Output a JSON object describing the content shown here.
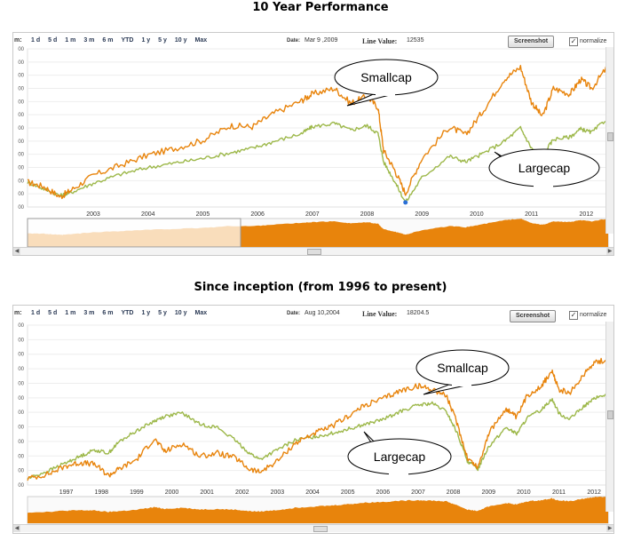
{
  "titles": [
    "10 Year Performance",
    "Since inception (from 1996 to present)"
  ],
  "colors": {
    "smallcap": "#e8840c",
    "largecap": "#9db84a",
    "nav_fill": "#e8840c",
    "nav_faded": "#f5cfa8"
  },
  "toolbar": {
    "cut_label": "m:",
    "ranges": [
      "1 d",
      "5 d",
      "1 m",
      "3 m",
      "6 m",
      "YTD",
      "1 y",
      "5 y",
      "10 y",
      "Max"
    ],
    "date_label": "Date:",
    "line_value_label": "Line Value:",
    "screenshot_label": "Screenshot",
    "normalize_label": "normalize",
    "normalize_checked": "✓"
  },
  "charts": [
    {
      "date_value": "Mar 9 ,2009",
      "line_value": "12535",
      "callouts": {
        "smallcap": "Smallcap",
        "largecap": "Largecap"
      }
    },
    {
      "date_value": "Aug 10,2004",
      "line_value": "18204.5",
      "callouts": {
        "smallcap": "Smallcap",
        "largecap": "Largecap"
      }
    }
  ],
  "chart_data": [
    {
      "type": "line",
      "title": "10 Year Performance",
      "x_ticks": [
        "2003",
        "2004",
        "2005",
        "2006",
        "2007",
        "2008",
        "2009",
        "2010",
        "2011",
        "2012"
      ],
      "xlim": [
        2002.3,
        2012.9
      ],
      "ylim": [
        0,
        14
      ],
      "ylabel_note": "y tick labels cropped",
      "series": [
        {
          "name": "Smallcap",
          "x": [
            2002.3,
            2002.6,
            2002.9,
            2003.1,
            2003.5,
            2004.0,
            2004.5,
            2005.0,
            2005.5,
            2006.0,
            2006.4,
            2006.8,
            2007.3,
            2007.5,
            2007.9,
            2008.2,
            2008.5,
            2008.7,
            2008.8,
            2009.0,
            2009.2,
            2009.5,
            2010.0,
            2010.3,
            2010.6,
            2011.0,
            2011.3,
            2011.5,
            2011.7,
            2011.9,
            2012.2,
            2012.4,
            2012.6,
            2012.9
          ],
          "values": [
            2.2,
            1.8,
            0.9,
            1.5,
            2.8,
            3.7,
            4.6,
            5.2,
            5.9,
            7.2,
            7.1,
            8.3,
            9.4,
            10.0,
            10.5,
            9.2,
            9.8,
            8.8,
            5.0,
            3.3,
            1.2,
            4.3,
            7.1,
            6.4,
            8.4,
            11.3,
            12.4,
            9.3,
            8.0,
            10.5,
            10.0,
            11.3,
            10.5,
            12.5
          ]
        },
        {
          "name": "Largecap",
          "x": [
            2002.3,
            2002.6,
            2002.9,
            2003.1,
            2003.5,
            2004.0,
            2004.5,
            2005.0,
            2005.5,
            2006.0,
            2006.4,
            2006.8,
            2007.3,
            2007.5,
            2007.9,
            2008.2,
            2008.5,
            2008.7,
            2008.8,
            2009.0,
            2009.2,
            2009.5,
            2010.0,
            2010.3,
            2010.6,
            2011.0,
            2011.3,
            2011.5,
            2011.7,
            2011.9,
            2012.2,
            2012.4,
            2012.6,
            2012.9
          ],
          "values": [
            2.2,
            1.6,
            1.0,
            1.3,
            2.1,
            2.9,
            3.5,
            3.9,
            4.3,
            4.8,
            5.2,
            5.8,
            6.5,
            7.1,
            7.4,
            6.8,
            7.2,
            6.5,
            4.0,
            2.3,
            0.4,
            2.6,
            4.5,
            4.0,
            4.7,
            5.8,
            7.0,
            5.2,
            4.5,
            6.0,
            6.2,
            6.9,
            6.6,
            7.9
          ]
        }
      ],
      "highlight_point": {
        "x": 2009.2,
        "value": 0.4
      }
    },
    {
      "type": "line",
      "title": "Since inception (from 1996 to present)",
      "x_ticks": [
        "1997",
        "1998",
        "1999",
        "2000",
        "2001",
        "2002",
        "2003",
        "2004",
        "2005",
        "2006",
        "2007",
        "2008",
        "2009",
        "2010",
        "2011",
        "2012"
      ],
      "xlim": [
        1996.4,
        2012.9
      ],
      "ylim": [
        0,
        10
      ],
      "ylabel_note": "y tick labels cropped",
      "series": [
        {
          "name": "Smallcap",
          "x": [
            1996.4,
            1997.0,
            1997.5,
            1997.9,
            1998.3,
            1998.7,
            1999.0,
            1999.5,
            2000.0,
            2000.3,
            2000.8,
            2001.3,
            2001.8,
            2002.3,
            2002.7,
            2003.0,
            2003.5,
            2004.0,
            2004.5,
            2005.0,
            2005.5,
            2006.0,
            2006.5,
            2007.0,
            2007.5,
            2007.9,
            2008.3,
            2008.6,
            2008.9,
            2009.2,
            2009.5,
            2010.0,
            2010.3,
            2010.6,
            2011.0,
            2011.3,
            2011.5,
            2011.8,
            2012.2,
            2012.5,
            2012.9
          ],
          "values": [
            0.4,
            0.7,
            1.2,
            1.4,
            1.3,
            0.6,
            1.0,
            1.6,
            2.9,
            2.1,
            2.6,
            1.8,
            2.0,
            1.7,
            1.0,
            0.8,
            1.5,
            2.6,
            3.2,
            3.6,
            4.3,
            5.0,
            5.4,
            5.9,
            6.2,
            6.0,
            5.6,
            3.9,
            1.7,
            1.1,
            3.2,
            4.8,
            4.2,
            5.6,
            6.2,
            7.1,
            6.0,
            5.7,
            6.9,
            7.7,
            7.8
          ]
        },
        {
          "name": "Largecap",
          "x": [
            1996.4,
            1997.0,
            1997.5,
            1997.9,
            1998.3,
            1998.7,
            1999.0,
            1999.5,
            2000.0,
            2000.3,
            2000.8,
            2001.3,
            2001.8,
            2002.3,
            2002.7,
            2003.0,
            2003.5,
            2004.0,
            2004.5,
            2005.0,
            2005.5,
            2006.0,
            2006.5,
            2007.0,
            2007.5,
            2007.9,
            2008.3,
            2008.6,
            2008.9,
            2009.2,
            2009.5,
            2010.0,
            2010.3,
            2010.6,
            2011.0,
            2011.3,
            2011.5,
            2011.8,
            2012.2,
            2012.5,
            2012.9
          ],
          "values": [
            0.4,
            0.9,
            1.4,
            1.8,
            2.2,
            2.0,
            2.7,
            3.4,
            4.0,
            4.3,
            4.5,
            3.8,
            3.6,
            2.8,
            2.0,
            1.6,
            2.2,
            2.8,
            3.0,
            3.2,
            3.5,
            3.8,
            4.1,
            4.6,
            5.0,
            5.1,
            4.6,
            3.3,
            1.5,
            1.0,
            2.4,
            3.6,
            3.2,
            4.2,
            4.7,
            5.4,
            4.5,
            4.1,
            4.9,
            5.4,
            5.7
          ]
        }
      ]
    }
  ]
}
